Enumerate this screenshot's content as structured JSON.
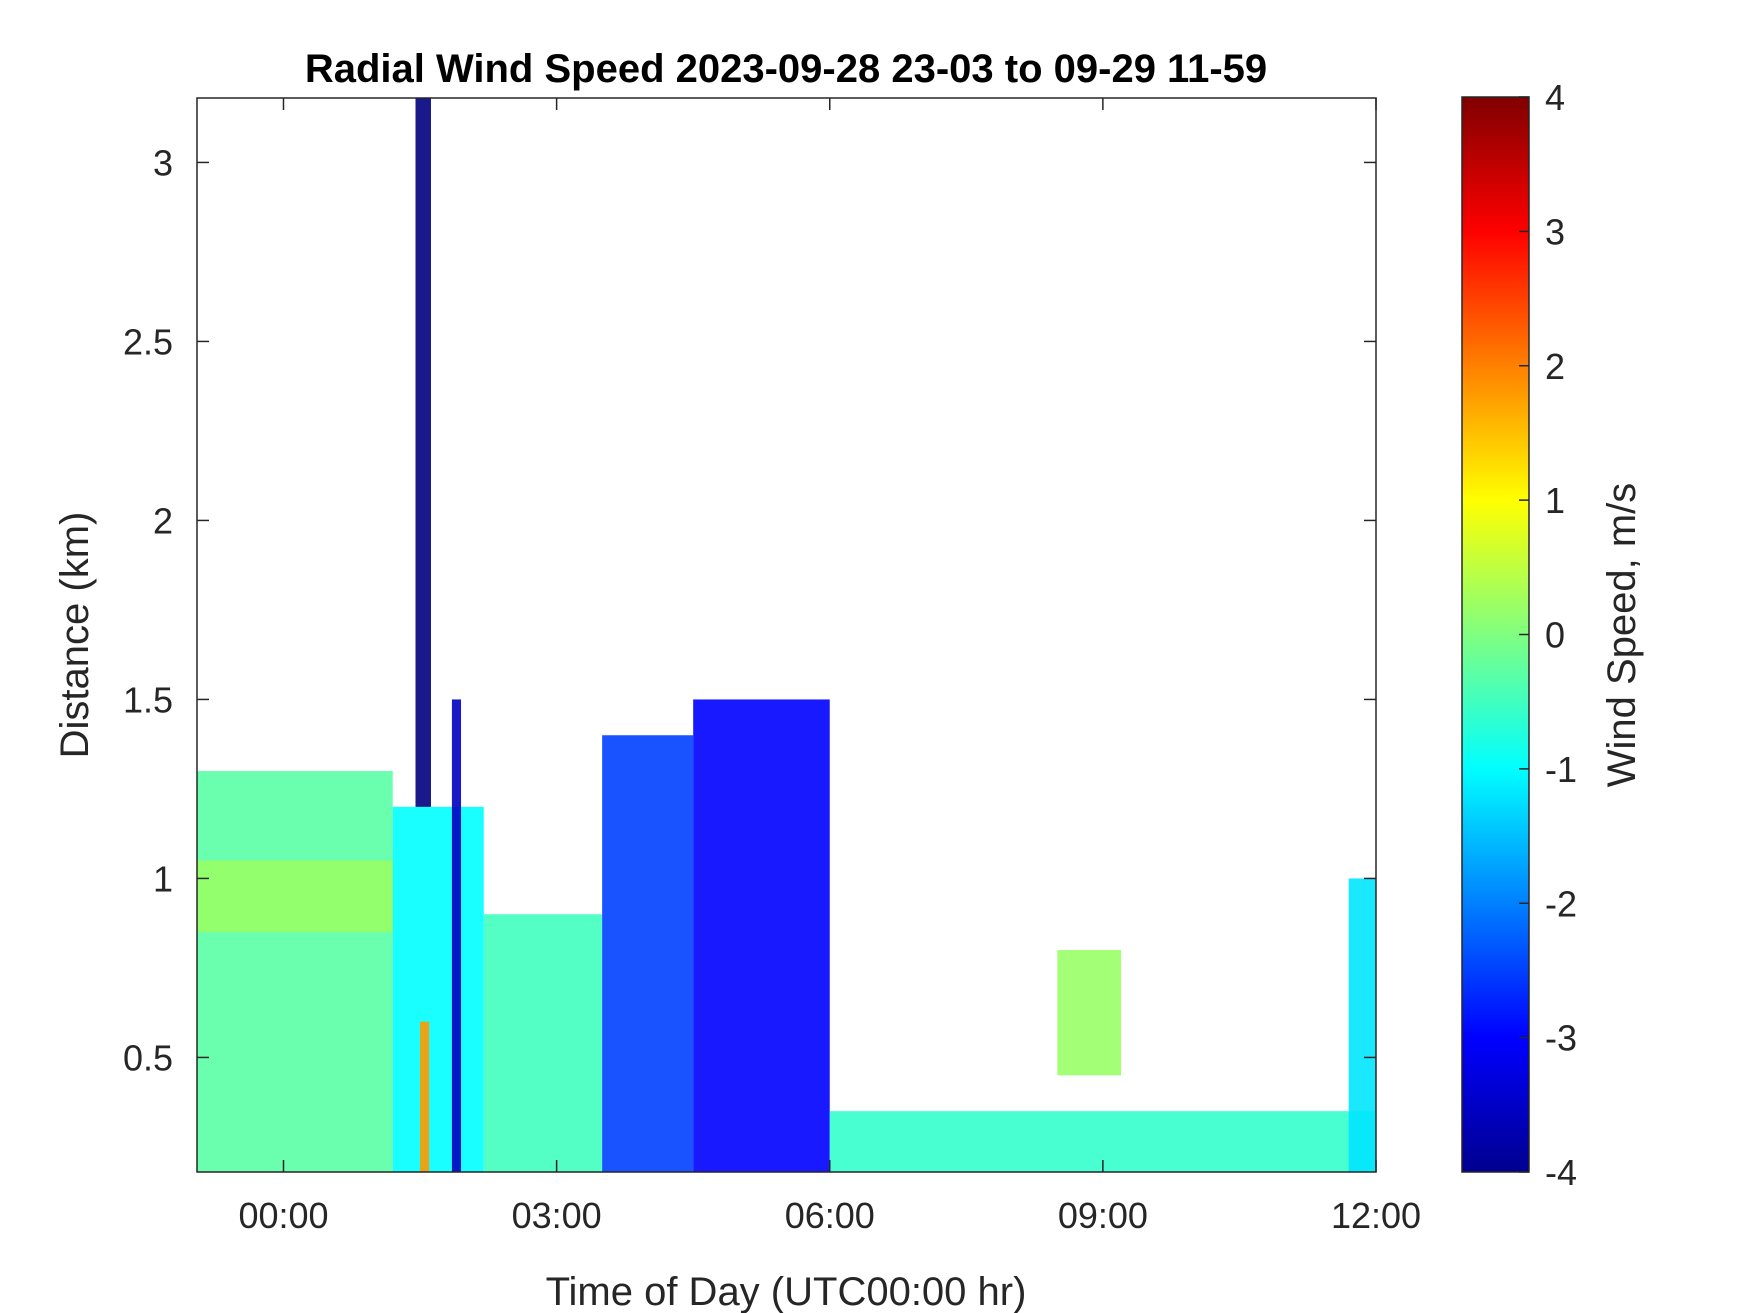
{
  "chart_data": {
    "type": "heatmap",
    "title": "Radial Wind Speed 2023-09-28 23-03 to 09-29 11-59",
    "xlabel": "Time of Day (UTC00:00 hr)",
    "ylabel": "Distance (km)",
    "colorbar_label": "Wind Speed, m/s",
    "x_unit": "hours relative to 2023-09-29 00:00 UTC",
    "xlim": [
      -0.95,
      12.0
    ],
    "ylim": [
      0.18,
      3.18
    ],
    "x_ticks": [
      0,
      3,
      6,
      9,
      12
    ],
    "x_tick_labels": [
      "00:00",
      "03:00",
      "06:00",
      "09:00",
      "12:00"
    ],
    "y_ticks": [
      0.5,
      1,
      1.5,
      2,
      2.5,
      3
    ],
    "y_tick_labels": [
      "0.5",
      "1",
      "1.5",
      "2",
      "2.5",
      "3"
    ],
    "colorbar_range": [
      -4,
      4
    ],
    "colorbar_ticks": [
      -4,
      -3,
      -2,
      -1,
      0,
      1,
      2,
      3,
      4
    ],
    "colorbar_tick_labels": [
      "-4",
      "-3",
      "-2",
      "-1",
      "0",
      "1",
      "2",
      "3",
      "4"
    ],
    "colormap": "jet",
    "grid": false,
    "regions": [
      {
        "x": [
          -0.95,
          1.2
        ],
        "y": [
          0.18,
          1.3
        ],
        "value": -0.3
      },
      {
        "x": [
          -0.95,
          1.2
        ],
        "y": [
          0.85,
          1.05
        ],
        "value": 0.2
      },
      {
        "x": [
          1.2,
          2.2
        ],
        "y": [
          0.18,
          1.2
        ],
        "value": -1.0
      },
      {
        "x": [
          1.5,
          1.6
        ],
        "y": [
          0.18,
          0.6
        ],
        "value": 1.8
      },
      {
        "x": [
          1.45,
          1.62
        ],
        "y": [
          1.2,
          3.18
        ],
        "value": -4.0
      },
      {
        "x": [
          1.85,
          1.95
        ],
        "y": [
          0.18,
          1.5
        ],
        "value": -3.5
      },
      {
        "x": [
          2.2,
          3.5
        ],
        "y": [
          0.18,
          0.9
        ],
        "value": -0.5
      },
      {
        "x": [
          3.5,
          4.5
        ],
        "y": [
          0.18,
          1.4
        ],
        "value": -2.5
      },
      {
        "x": [
          4.5,
          6.0
        ],
        "y": [
          0.18,
          1.5
        ],
        "value": -3.0
      },
      {
        "x": [
          6.0,
          12.0
        ],
        "y": [
          0.18,
          0.35
        ],
        "value": -0.6
      },
      {
        "x": [
          8.5,
          9.2
        ],
        "y": [
          0.45,
          0.8
        ],
        "value": 0.2
      },
      {
        "x": [
          11.7,
          12.0
        ],
        "y": [
          0.18,
          1.0
        ],
        "value": -1.2
      }
    ],
    "colorbar_colors": [
      "#00008f",
      "#0000ff",
      "#0080ff",
      "#00ffff",
      "#80ff80",
      "#ffff00",
      "#ff8000",
      "#ff0000",
      "#800000"
    ]
  }
}
